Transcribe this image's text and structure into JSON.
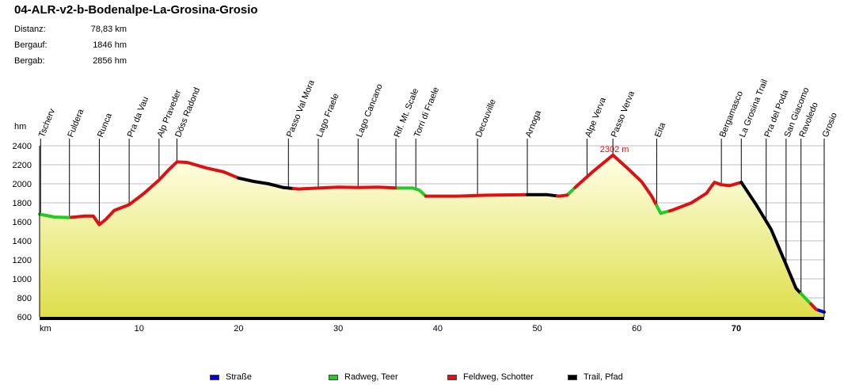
{
  "title": "04-ALR-v2-b-Bodenalpe-La-Grosina-Grosio",
  "stats": [
    {
      "label": "Distanz:",
      "value": "78,83 km"
    },
    {
      "label": "Bergauf:",
      "value": "1846 hm"
    },
    {
      "label": "Bergab:",
      "value": "2856 hm"
    }
  ],
  "legend": [
    {
      "label": "Straße",
      "color": "#0000dd"
    },
    {
      "label": "Radweg, Teer",
      "color": "#22cc22"
    },
    {
      "label": "Feldweg, Schotter",
      "color": "#dd1111"
    },
    {
      "label": "Trail, Pfad",
      "color": "#000000"
    }
  ],
  "chart_data": {
    "type": "area",
    "ylabel": "hm",
    "xlabel": "km",
    "xlim": [
      0,
      78.83
    ],
    "ylim": [
      600,
      2400
    ],
    "yticks": [
      600,
      800,
      1000,
      1200,
      1400,
      1600,
      1800,
      2000,
      2200,
      2400
    ],
    "xticks": [
      10,
      20,
      30,
      40,
      50,
      60,
      70
    ],
    "xtick_labels": [
      "10",
      "20",
      "30",
      "40",
      "50",
      "60",
      "70"
    ],
    "bold_xtick": 70,
    "grid": true,
    "max_label": "2302 m",
    "max_point": {
      "x": 57.6,
      "y": 2302
    },
    "profile": [
      [
        0,
        1680
      ],
      [
        1.5,
        1650
      ],
      [
        3,
        1645
      ],
      [
        4.5,
        1660
      ],
      [
        5.4,
        1660
      ],
      [
        6.0,
        1570
      ],
      [
        6.6,
        1620
      ],
      [
        7.5,
        1720
      ],
      [
        9.0,
        1780
      ],
      [
        10.5,
        1900
      ],
      [
        12.0,
        2040
      ],
      [
        13.0,
        2150
      ],
      [
        13.8,
        2230
      ],
      [
        14.8,
        2225
      ],
      [
        15.8,
        2195
      ],
      [
        16.8,
        2165
      ],
      [
        18.5,
        2125
      ],
      [
        20.0,
        2060
      ],
      [
        21.5,
        2025
      ],
      [
        23.0,
        2000
      ],
      [
        24.5,
        1960
      ],
      [
        26.0,
        1945
      ],
      [
        28.0,
        1955
      ],
      [
        30.0,
        1965
      ],
      [
        32.0,
        1960
      ],
      [
        34.0,
        1965
      ],
      [
        36.0,
        1955
      ],
      [
        37.5,
        1955
      ],
      [
        38.2,
        1930
      ],
      [
        38.8,
        1870
      ],
      [
        42.0,
        1870
      ],
      [
        45.0,
        1880
      ],
      [
        49.0,
        1885
      ],
      [
        51.0,
        1885
      ],
      [
        52.2,
        1870
      ],
      [
        53.0,
        1880
      ],
      [
        54.0,
        1980
      ],
      [
        55.5,
        2120
      ],
      [
        57.6,
        2302
      ],
      [
        59.0,
        2170
      ],
      [
        60.5,
        2020
      ],
      [
        61.5,
        1870
      ],
      [
        62.4,
        1690
      ],
      [
        63.5,
        1720
      ],
      [
        65.5,
        1800
      ],
      [
        67.0,
        1900
      ],
      [
        67.8,
        2015
      ],
      [
        68.5,
        1990
      ],
      [
        69.3,
        1980
      ],
      [
        70.5,
        2015
      ],
      [
        72.0,
        1780
      ],
      [
        73.5,
        1520
      ],
      [
        75.0,
        1150
      ],
      [
        76.0,
        900
      ],
      [
        77.0,
        790
      ],
      [
        78.0,
        680
      ],
      [
        78.83,
        650
      ]
    ],
    "segments": [
      {
        "from": 0,
        "to": 3.2,
        "surface": "Radweg, Teer"
      },
      {
        "from": 3.2,
        "to": 20.0,
        "surface": "Feldweg, Schotter"
      },
      {
        "from": 20.0,
        "to": 25.5,
        "surface": "Trail, Pfad"
      },
      {
        "from": 25.5,
        "to": 36.0,
        "surface": "Feldweg, Schotter"
      },
      {
        "from": 36.0,
        "to": 38.8,
        "surface": "Radweg, Teer"
      },
      {
        "from": 38.8,
        "to": 49.0,
        "surface": "Feldweg, Schotter"
      },
      {
        "from": 49.0,
        "to": 52.0,
        "surface": "Trail, Pfad"
      },
      {
        "from": 52.0,
        "to": 53.2,
        "surface": "Feldweg, Schotter"
      },
      {
        "from": 53.2,
        "to": 53.8,
        "surface": "Radweg, Teer"
      },
      {
        "from": 53.8,
        "to": 62.0,
        "surface": "Feldweg, Schotter"
      },
      {
        "from": 62.0,
        "to": 63.3,
        "surface": "Radweg, Teer"
      },
      {
        "from": 63.3,
        "to": 70.5,
        "surface": "Feldweg, Schotter"
      },
      {
        "from": 70.5,
        "to": 76.5,
        "surface": "Trail, Pfad"
      },
      {
        "from": 76.5,
        "to": 77.5,
        "surface": "Radweg, Teer"
      },
      {
        "from": 77.5,
        "to": 78.3,
        "surface": "Feldweg, Schotter"
      },
      {
        "from": 78.3,
        "to": 78.83,
        "surface": "Straße"
      }
    ],
    "waypoints": [
      {
        "name": "Tscherv",
        "x": 0.1
      },
      {
        "name": "Fuldera",
        "x": 3.0
      },
      {
        "name": "Runca",
        "x": 6.0
      },
      {
        "name": "Pra da Vau",
        "x": 9.0
      },
      {
        "name": "Alp Praveder",
        "x": 12.0
      },
      {
        "name": "Döss Radond",
        "x": 13.8
      },
      {
        "name": "Passo Val Mora",
        "x": 25.0
      },
      {
        "name": "Lago Fraele",
        "x": 28.0
      },
      {
        "name": "Lago Cancano",
        "x": 32.0
      },
      {
        "name": "Rif. Mt. Scale",
        "x": 35.8
      },
      {
        "name": "Torri di Fraele",
        "x": 37.8
      },
      {
        "name": "Decouville",
        "x": 44.0
      },
      {
        "name": "Arnoga",
        "x": 49.0
      },
      {
        "name": "Alpe Verva",
        "x": 55.0
      },
      {
        "name": "Passo Verva",
        "x": 57.6
      },
      {
        "name": "Eita",
        "x": 62.0
      },
      {
        "name": "Bergamasco",
        "x": 68.5
      },
      {
        "name": "La Grosina Trail",
        "x": 70.5
      },
      {
        "name": "Pra del Poda",
        "x": 73.0
      },
      {
        "name": "San Giacomo",
        "x": 75.0
      },
      {
        "name": "Ravoledo",
        "x": 76.5
      },
      {
        "name": "Grosio",
        "x": 78.83
      }
    ]
  }
}
